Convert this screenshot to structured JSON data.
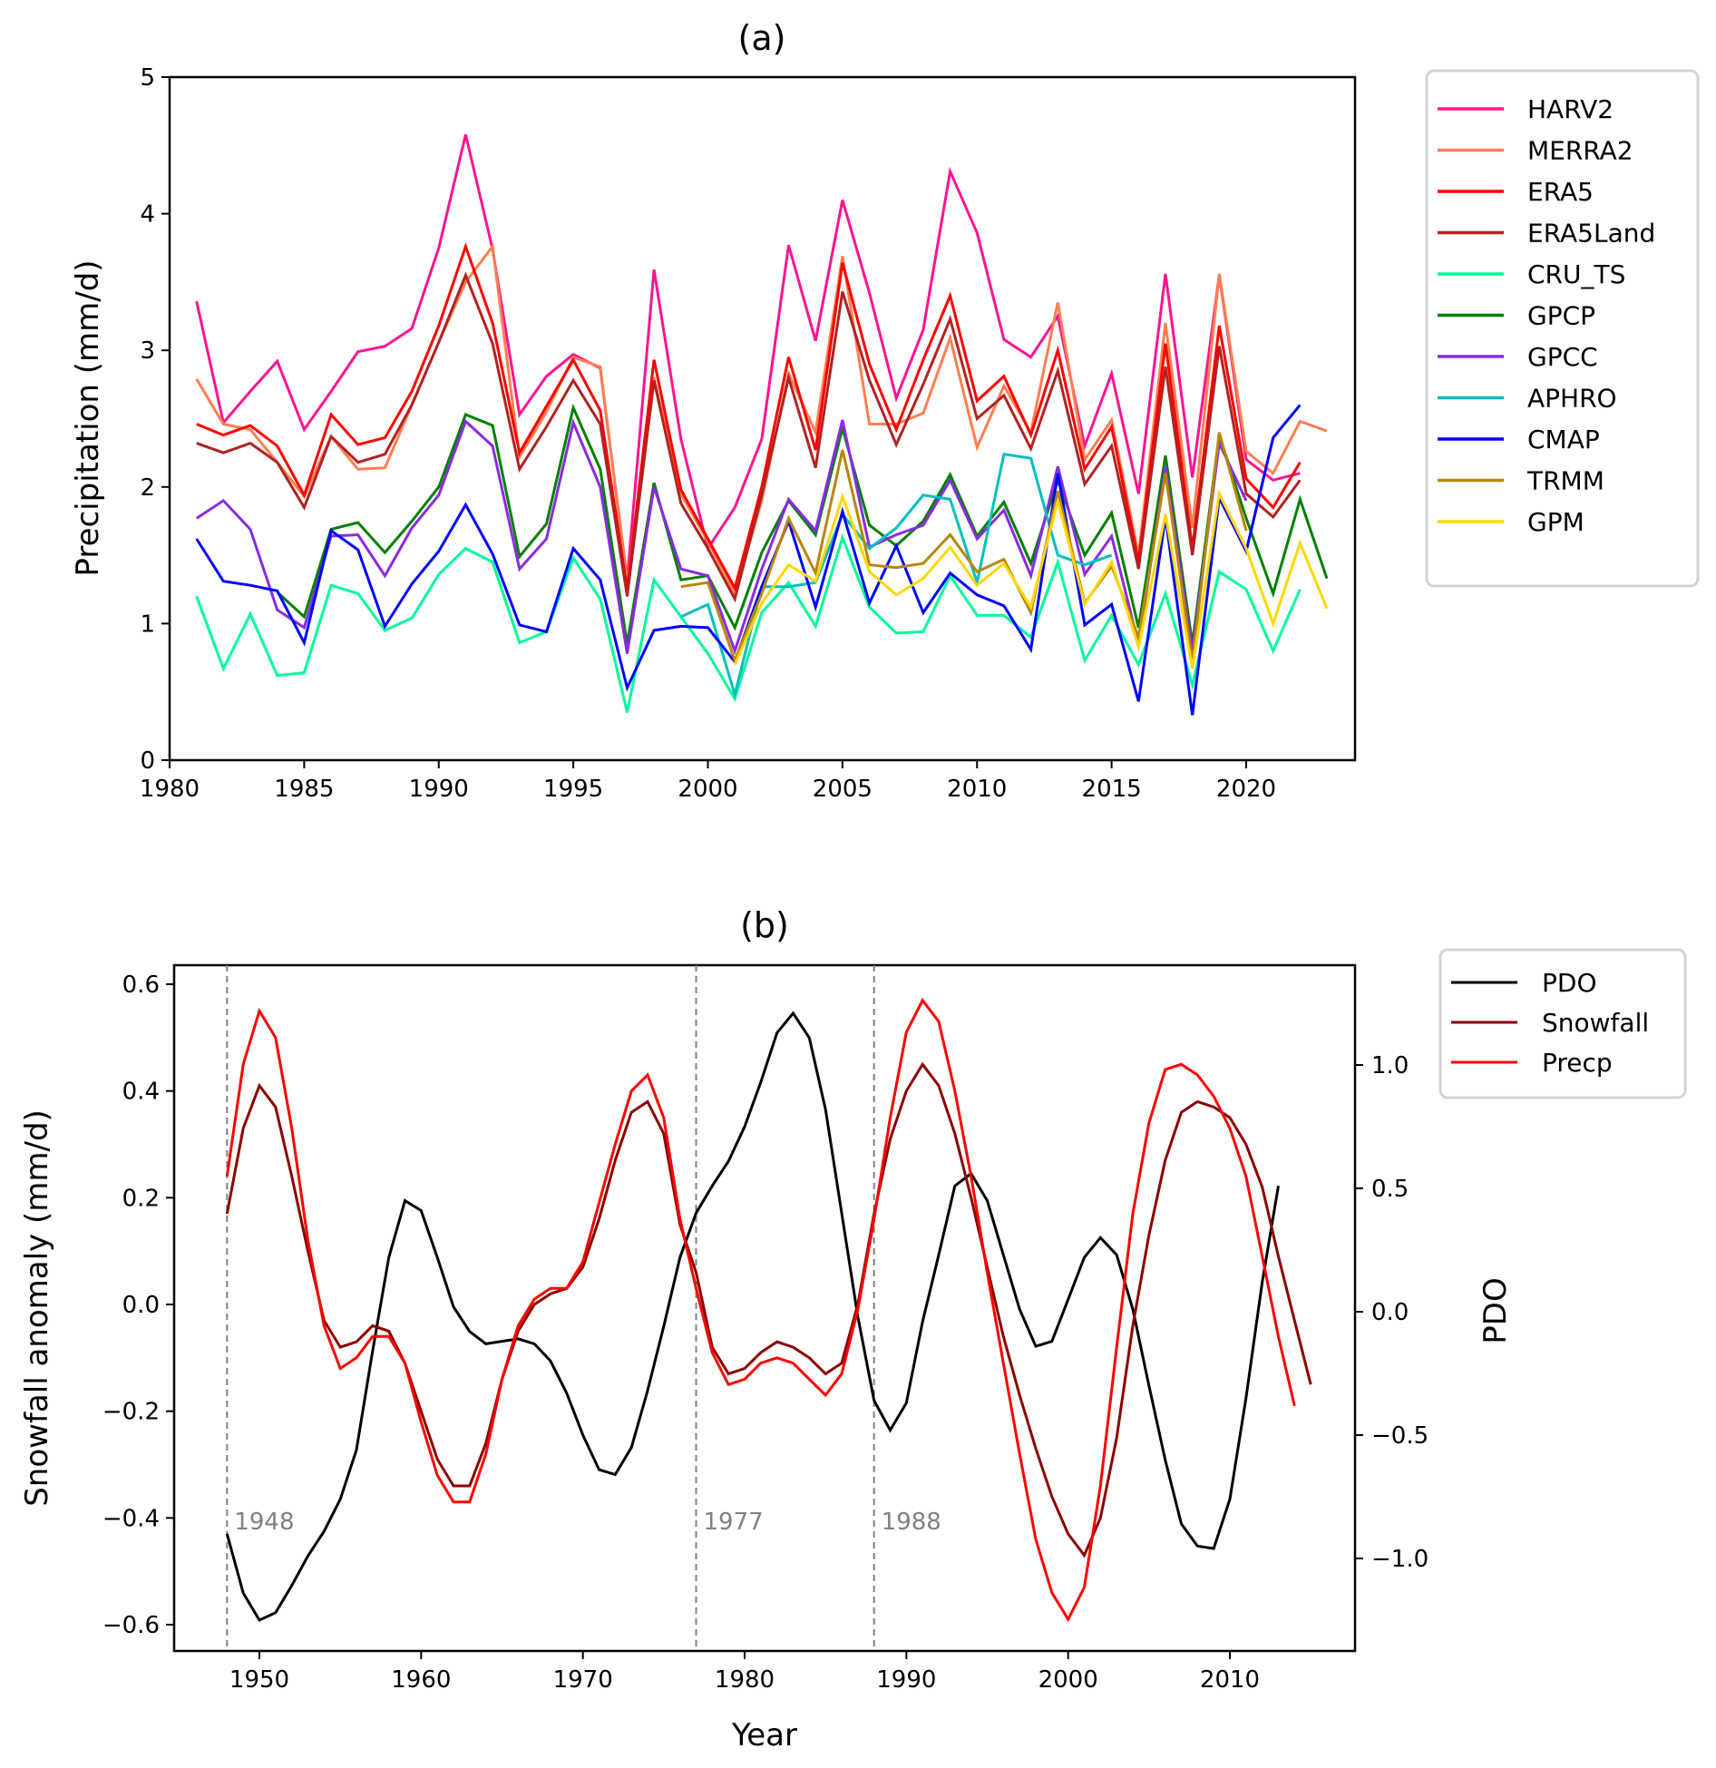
{
  "chart_data": [
    {
      "panel": "a",
      "type": "line",
      "title": "(a)",
      "xlabel": "",
      "ylabel": "Precipitation (mm/d)",
      "xlim": [
        1980,
        2024
      ],
      "ylim": [
        0,
        5
      ],
      "xticks": [
        1980,
        1985,
        1990,
        1995,
        2000,
        2005,
        2010,
        2015,
        2020
      ],
      "yticks": [
        0,
        1,
        2,
        3,
        4,
        5
      ],
      "grid": false,
      "legend_position": "outside-right",
      "series": [
        {
          "name": "HARV2",
          "color": "#ff1493",
          "start": 1981,
          "values": [
            3.36,
            2.47,
            2.7,
            2.92,
            2.42,
            2.7,
            2.99,
            3.03,
            3.16,
            3.75,
            4.58,
            3.74,
            2.53,
            2.81,
            2.97,
            2.87,
            1.32,
            3.59,
            2.35,
            1.55,
            1.85,
            2.35,
            3.77,
            3.07,
            4.1,
            3.42,
            2.65,
            3.15,
            4.31,
            3.86,
            3.08,
            2.95,
            3.25,
            2.3,
            2.83,
            1.95,
            3.56,
            2.07,
            3.55,
            2.2,
            2.05,
            2.1
          ]
        },
        {
          "name": "MERRA2",
          "color": "#ff7f50",
          "start": 1981,
          "values": [
            2.79,
            2.46,
            2.42,
            2.18,
            1.93,
            2.37,
            2.13,
            2.14,
            2.6,
            3.06,
            3.5,
            3.76,
            2.22,
            2.55,
            2.95,
            2.88,
            1.3,
            2.8,
            1.95,
            1.6,
            1.22,
            1.9,
            2.83,
            2.4,
            3.69,
            2.46,
            2.46,
            2.54,
            3.09,
            2.29,
            2.74,
            2.4,
            3.35,
            2.2,
            2.49,
            1.5,
            3.2,
            1.7,
            3.56,
            2.26,
            2.1,
            2.48,
            2.41
          ]
        },
        {
          "name": "ERA5",
          "color": "#ff0000",
          "start": 1981,
          "values": [
            2.46,
            2.38,
            2.45,
            2.3,
            1.94,
            2.53,
            2.31,
            2.36,
            2.7,
            3.18,
            3.76,
            3.2,
            2.25,
            2.59,
            2.93,
            2.56,
            1.25,
            2.93,
            1.98,
            1.62,
            1.26,
            2.0,
            2.95,
            2.27,
            3.64,
            2.9,
            2.42,
            2.93,
            3.4,
            2.63,
            2.81,
            2.38,
            3.0,
            2.13,
            2.44,
            1.45,
            3.05,
            1.55,
            3.18,
            2.06,
            1.85,
            2.18
          ]
        },
        {
          "name": "ERA5Land",
          "color": "#b22222",
          "start": 1981,
          "values": [
            2.32,
            2.25,
            2.32,
            2.18,
            1.85,
            2.37,
            2.18,
            2.24,
            2.6,
            3.06,
            3.55,
            3.05,
            2.13,
            2.44,
            2.78,
            2.46,
            1.2,
            2.78,
            1.88,
            1.55,
            1.18,
            1.94,
            2.8,
            2.14,
            3.43,
            2.78,
            2.31,
            2.75,
            3.23,
            2.5,
            2.67,
            2.28,
            2.85,
            2.02,
            2.3,
            1.4,
            2.88,
            1.5,
            3.03,
            1.95,
            1.78,
            2.05
          ]
        },
        {
          "name": "CRU_TS",
          "color": "#00fa9a",
          "start": 1981,
          "values": [
            1.2,
            0.67,
            1.07,
            0.62,
            0.64,
            1.28,
            1.22,
            0.95,
            1.04,
            1.36,
            1.55,
            1.45,
            0.86,
            0.94,
            1.48,
            1.18,
            0.35,
            1.32,
            1.05,
            0.78,
            0.45,
            1.08,
            1.3,
            0.98,
            1.63,
            1.12,
            0.93,
            0.94,
            1.35,
            1.06,
            1.06,
            0.9,
            1.45,
            0.73,
            1.06,
            0.7,
            1.22,
            0.55,
            1.38,
            1.25,
            0.8,
            1.25
          ]
        },
        {
          "name": "GPCP",
          "color": "#008000",
          "start": 1981,
          "values": [
            null,
            null,
            null,
            1.23,
            1.05,
            1.69,
            1.74,
            1.52,
            1.75,
            2.0,
            2.53,
            2.45,
            1.49,
            1.73,
            2.58,
            2.13,
            0.85,
            2.03,
            1.32,
            1.35,
            0.97,
            1.52,
            1.9,
            1.65,
            2.43,
            1.72,
            1.57,
            1.75,
            2.09,
            1.64,
            1.89,
            1.44,
            2.05,
            1.5,
            1.81,
            0.97,
            2.23,
            0.85,
            2.38,
            1.77,
            1.22,
            1.91,
            1.33
          ]
        },
        {
          "name": "GPCC",
          "color": "#8a2be2",
          "start": 1981,
          "values": [
            1.77,
            1.9,
            1.69,
            1.1,
            0.97,
            1.64,
            1.65,
            1.35,
            1.7,
            1.94,
            2.48,
            2.3,
            1.4,
            1.62,
            2.47,
            2.0,
            0.78,
            2.0,
            1.4,
            1.35,
            0.8,
            1.4,
            1.91,
            1.68,
            2.49,
            1.56,
            1.65,
            1.72,
            2.05,
            1.62,
            1.83,
            1.35,
            2.15,
            1.36,
            1.64,
            0.85,
            2.15,
            0.8,
            2.32,
            1.9
          ]
        },
        {
          "name": "APHRO",
          "color": "#00bfbf",
          "start": 1981,
          "values": [
            null,
            null,
            null,
            null,
            null,
            null,
            null,
            null,
            null,
            null,
            null,
            null,
            null,
            null,
            null,
            null,
            null,
            null,
            1.05,
            1.14,
            0.48,
            1.27,
            1.27,
            1.3,
            1.8,
            1.55,
            1.7,
            1.94,
            1.91,
            1.3,
            2.24,
            2.21,
            1.5,
            1.43,
            1.5
          ]
        },
        {
          "name": "CMAP",
          "color": "#0000ff",
          "start": 1981,
          "values": [
            1.62,
            1.31,
            1.28,
            1.24,
            0.86,
            1.68,
            1.54,
            0.98,
            1.29,
            1.53,
            1.87,
            1.51,
            0.99,
            0.94,
            1.55,
            1.32,
            0.53,
            0.95,
            0.98,
            0.97,
            0.72,
            1.27,
            1.75,
            1.12,
            1.82,
            1.15,
            1.57,
            1.08,
            1.37,
            1.21,
            1.13,
            0.81,
            2.1,
            0.99,
            1.14,
            0.43,
            1.78,
            0.33,
            1.92,
            1.53,
            2.36,
            2.6
          ]
        },
        {
          "name": "TRMM",
          "color": "#b8860b",
          "start": 1981,
          "values": [
            null,
            null,
            null,
            null,
            null,
            null,
            null,
            null,
            null,
            null,
            null,
            null,
            null,
            null,
            null,
            null,
            null,
            null,
            1.27,
            1.3,
            0.73,
            1.22,
            1.77,
            1.37,
            2.27,
            1.43,
            1.41,
            1.44,
            1.65,
            1.38,
            1.47,
            1.08,
            1.97,
            1.15,
            1.42,
            0.9,
            2.1,
            0.72,
            2.4,
            1.68,
            null,
            null
          ]
        },
        {
          "name": "GPM",
          "color": "#ffd700",
          "start": 1981,
          "values": [
            null,
            null,
            null,
            null,
            null,
            null,
            null,
            null,
            null,
            null,
            null,
            null,
            null,
            null,
            null,
            null,
            null,
            null,
            null,
            null,
            0.7,
            1.15,
            1.43,
            1.31,
            1.93,
            1.38,
            1.21,
            1.33,
            1.56,
            1.28,
            1.44,
            1.12,
            1.9,
            1.14,
            1.45,
            0.83,
            1.8,
            0.67,
            1.95,
            1.55,
            1.0,
            1.59,
            1.11
          ]
        }
      ]
    },
    {
      "panel": "b",
      "type": "line",
      "title": "(b)",
      "xlabel": "Year",
      "ylabel": "Snowfall anomaly (mm/d)",
      "y2label": "PDO",
      "xlim": [
        1944.5,
        2019
      ],
      "ylim": [
        -0.65,
        0.65
      ],
      "y2lim": [
        -1.4,
        1.42
      ],
      "xticks": [
        1950,
        1960,
        1970,
        1980,
        1990,
        2000,
        2010
      ],
      "yticks": [
        -0.6,
        -0.4,
        -0.2,
        0.0,
        0.2,
        0.4,
        0.6
      ],
      "y2ticks": [
        -1.0,
        -0.5,
        0.0,
        0.5,
        1.0
      ],
      "grid": false,
      "legend_position": "outside-top-right",
      "vlines": [
        {
          "x": 1948,
          "label": "1948"
        },
        {
          "x": 1977,
          "label": "1977"
        },
        {
          "x": 1988,
          "label": "1988"
        }
      ],
      "series": [
        {
          "name": "PDO",
          "color": "#000000",
          "axis": "right",
          "start": 1948,
          "values": [
            -0.9,
            -1.14,
            -1.25,
            -1.22,
            -1.11,
            -0.99,
            -0.89,
            -0.76,
            -0.56,
            -0.16,
            0.22,
            0.45,
            0.41,
            0.22,
            0.02,
            -0.08,
            -0.13,
            -0.12,
            -0.11,
            -0.13,
            -0.2,
            -0.33,
            -0.5,
            -0.64,
            -0.66,
            -0.55,
            -0.32,
            -0.06,
            0.22,
            0.4,
            0.51,
            0.61,
            0.75,
            0.93,
            1.13,
            1.21,
            1.11,
            0.82,
            0.4,
            -0.02,
            -0.36,
            -0.48,
            -0.37,
            -0.04,
            0.23,
            0.51,
            0.56,
            0.45,
            0.23,
            0.01,
            -0.14,
            -0.12,
            0.05,
            0.22,
            0.3,
            0.23,
            0.01,
            -0.3,
            -0.6,
            -0.86,
            -0.95,
            -0.96,
            -0.76,
            -0.35,
            0.12,
            0.51
          ]
        },
        {
          "name": "Snowfall",
          "color": "#8b0000",
          "axis": "left",
          "start": 1948,
          "values": [
            0.17,
            0.33,
            0.41,
            0.37,
            0.24,
            0.1,
            -0.03,
            -0.08,
            -0.07,
            -0.04,
            -0.05,
            -0.11,
            -0.2,
            -0.29,
            -0.34,
            -0.34,
            -0.26,
            -0.14,
            -0.05,
            0.0,
            0.02,
            0.03,
            0.07,
            0.16,
            0.27,
            0.36,
            0.38,
            0.32,
            0.15,
            0.06,
            -0.08,
            -0.13,
            -0.12,
            -0.09,
            -0.07,
            -0.08,
            -0.1,
            -0.13,
            -0.11,
            0.0,
            0.17,
            0.31,
            0.4,
            0.45,
            0.41,
            0.32,
            0.2,
            0.07,
            -0.06,
            -0.17,
            -0.27,
            -0.36,
            -0.43,
            -0.47,
            -0.4,
            -0.25,
            -0.04,
            0.13,
            0.27,
            0.36,
            0.38,
            0.37,
            0.35,
            0.3,
            0.22,
            0.09,
            -0.03,
            -0.15
          ]
        },
        {
          "name": "Precp",
          "color": "#ff0000",
          "axis": "left",
          "start": 1948,
          "values": [
            0.24,
            0.45,
            0.55,
            0.5,
            0.33,
            0.12,
            -0.04,
            -0.12,
            -0.1,
            -0.06,
            -0.06,
            -0.11,
            -0.22,
            -0.32,
            -0.37,
            -0.37,
            -0.28,
            -0.14,
            -0.04,
            0.01,
            0.03,
            0.03,
            0.08,
            0.19,
            0.3,
            0.4,
            0.43,
            0.35,
            0.16,
            0.03,
            -0.09,
            -0.15,
            -0.14,
            -0.11,
            -0.1,
            -0.11,
            -0.14,
            -0.17,
            -0.13,
            -0.01,
            0.16,
            0.35,
            0.51,
            0.57,
            0.53,
            0.4,
            0.24,
            0.06,
            -0.11,
            -0.28,
            -0.44,
            -0.54,
            -0.59,
            -0.53,
            -0.34,
            -0.08,
            0.17,
            0.34,
            0.44,
            0.45,
            0.43,
            0.39,
            0.33,
            0.24,
            0.09,
            -0.06,
            -0.19
          ]
        }
      ]
    }
  ]
}
